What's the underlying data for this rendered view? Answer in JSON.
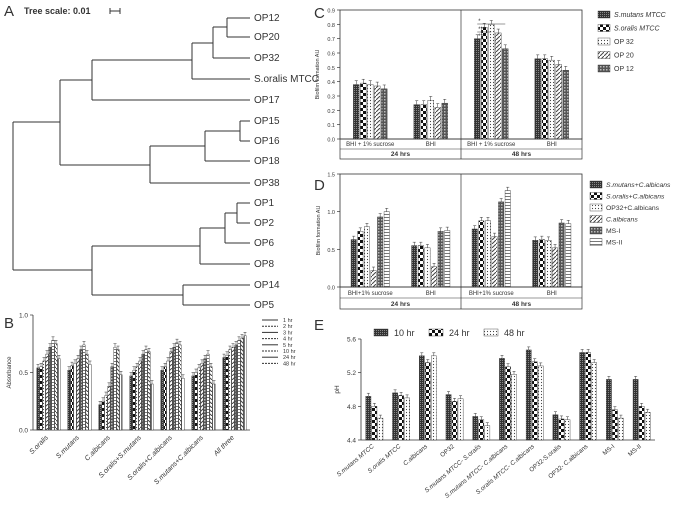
{
  "colors": {
    "ink": "#222222",
    "bar_dark": "#444444",
    "bar_mid": "#777777",
    "bar_light": "#aaaaaa",
    "bg": "#ffffff"
  },
  "panel_a": {
    "label": "A",
    "scale_label": "Tree scale: 0.01",
    "leaves": [
      "OP12",
      "OP20",
      "OP32",
      "S.oralis MTCC",
      "OP17",
      "OP15",
      "OP16",
      "OP18",
      "OP38",
      "OP1",
      "OP2",
      "OP6",
      "OP8",
      "OP14",
      "OP5"
    ]
  },
  "chart_data": [
    {
      "panel": "B",
      "type": "bar",
      "title": "",
      "ylabel": "Absorbance",
      "ylim": [
        0,
        1.0
      ],
      "yticks": [
        "0.0",
        "0.5",
        "1.0"
      ],
      "categories": [
        "S.oralis",
        "S.mutans",
        "C.albicans",
        "S.oralis+S.mutans",
        "S.oralis+C.albicans",
        "S.mutans+C.albicans",
        "All three"
      ],
      "series": [
        {
          "name": "1 hr",
          "values": [
            0.54,
            0.52,
            0.22,
            0.47,
            0.52,
            0.47,
            0.63
          ]
        },
        {
          "name": "2 hr",
          "values": [
            0.55,
            0.56,
            0.25,
            0.52,
            0.55,
            0.5,
            0.65
          ]
        },
        {
          "name": "3 hr",
          "values": [
            0.6,
            0.58,
            0.3,
            0.55,
            0.6,
            0.54,
            0.7
          ]
        },
        {
          "name": "4 hr",
          "values": [
            0.66,
            0.62,
            0.38,
            0.6,
            0.68,
            0.58,
            0.72
          ]
        },
        {
          "name": "5 hr",
          "values": [
            0.72,
            0.7,
            0.55,
            0.66,
            0.72,
            0.62,
            0.74
          ]
        },
        {
          "name": "10 hr",
          "values": [
            0.78,
            0.74,
            0.72,
            0.7,
            0.76,
            0.66,
            0.78
          ]
        },
        {
          "name": "24 hr",
          "values": [
            0.75,
            0.66,
            0.7,
            0.68,
            0.74,
            0.55,
            0.8
          ]
        },
        {
          "name": "48 hr",
          "values": [
            0.62,
            0.57,
            0.48,
            0.4,
            0.45,
            0.4,
            0.82
          ]
        }
      ]
    },
    {
      "panel": "C",
      "type": "bar",
      "title": "",
      "ylabel": "Biofilm formation AU",
      "ylim": [
        0,
        0.9
      ],
      "yticks": [
        "0.0",
        "0.1",
        "0.2",
        "0.3",
        "0.4",
        "0.5",
        "0.6",
        "0.7",
        "0.8",
        "0.9"
      ],
      "categories": [
        "BHI + 1% sucrose",
        "BHI",
        "BHI + 1% sucrose",
        "BHI"
      ],
      "groups": [
        "24 hrs",
        "48 hrs"
      ],
      "significance": [
        "*",
        "***",
        "**"
      ],
      "series": [
        {
          "name": "S.mutans MTCC",
          "values": [
            0.38,
            0.24,
            0.7,
            0.56
          ]
        },
        {
          "name": "S.oralis MTCC",
          "values": [
            0.39,
            0.24,
            0.78,
            0.56
          ]
        },
        {
          "name": "OP 32",
          "values": [
            0.38,
            0.27,
            0.8,
            0.55
          ]
        },
        {
          "name": "OP 20",
          "values": [
            0.37,
            0.22,
            0.74,
            0.52
          ]
        },
        {
          "name": "OP 12",
          "values": [
            0.35,
            0.25,
            0.63,
            0.48
          ]
        }
      ]
    },
    {
      "panel": "D",
      "type": "bar",
      "title": "",
      "ylabel": "Biofilm formation AU",
      "ylim": [
        0,
        1.5
      ],
      "yticks": [
        "0.0",
        "0.5",
        "1.0",
        "1.5"
      ],
      "categories": [
        "BHI+1% sucrose",
        "BHI",
        "BHI+1% sucrose",
        "BHI"
      ],
      "groups": [
        "24 hrs",
        "48 hrs"
      ],
      "series": [
        {
          "name": "S.mutans+C.albicans",
          "values": [
            0.63,
            0.55,
            0.77,
            0.62
          ]
        },
        {
          "name": "S.oralis+C.albicans",
          "values": [
            0.74,
            0.55,
            0.88,
            0.63
          ]
        },
        {
          "name": "OP32+C.albicans",
          "values": [
            0.8,
            0.52,
            0.88,
            0.62
          ]
        },
        {
          "name": "C.albicans",
          "values": [
            0.22,
            0.27,
            0.67,
            0.52
          ]
        },
        {
          "name": "MS-I",
          "values": [
            0.93,
            0.74,
            1.13,
            0.85
          ]
        },
        {
          "name": "MS-II",
          "values": [
            1.0,
            0.75,
            1.28,
            0.84
          ]
        }
      ]
    },
    {
      "panel": "E",
      "type": "bar",
      "title": "",
      "ylabel": "pH",
      "ylim": [
        4.4,
        5.6
      ],
      "yticks": [
        "4.4",
        "4.8",
        "5.2",
        "5.6"
      ],
      "categories": [
        "S.mutans MTCC",
        "S.oralis MTCC",
        "C.albicans",
        "OP32",
        "S.mutans MTCC- S.oralis",
        "S.mutans MTCC- C.albicans",
        "S.oralis MTCC- C.albicans",
        "OP32-S.oralis",
        "OP32- C.albicans",
        "MS-I",
        "MS-II"
      ],
      "series": [
        {
          "name": "10 hr",
          "values": [
            4.92,
            4.96,
            5.4,
            4.94,
            4.68,
            5.37,
            5.47,
            4.7,
            5.44,
            5.12,
            5.12
          ]
        },
        {
          "name": "24 hr",
          "values": [
            4.8,
            4.93,
            5.32,
            4.86,
            4.64,
            5.27,
            5.33,
            4.65,
            5.44,
            4.76,
            4.8
          ]
        },
        {
          "name": "48 hr",
          "values": [
            4.66,
            4.9,
            5.4,
            4.89,
            4.57,
            5.18,
            5.28,
            4.64,
            5.32,
            4.66,
            4.73
          ]
        }
      ]
    }
  ],
  "panel_labels": {
    "b": "B",
    "c": "C",
    "d": "D",
    "e": "E"
  }
}
